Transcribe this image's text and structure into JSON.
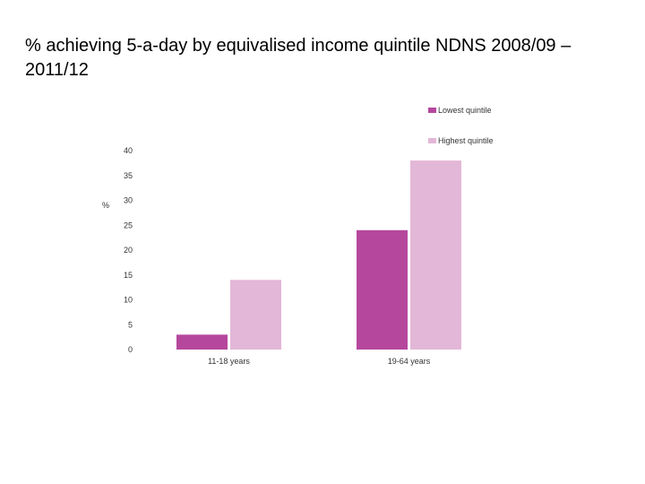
{
  "slide": {
    "title": "% achieving 5-a-day by equivalised income quintile NDNS 2008/09 – 2011/12"
  },
  "chart_data": {
    "type": "bar",
    "title": "",
    "ylabel": "%",
    "xlabel": "",
    "categories": [
      "11-18 years",
      "19-64 years"
    ],
    "series": [
      {
        "name": "Lowest quintile",
        "color": "#b5489d",
        "values": [
          3,
          24
        ]
      },
      {
        "name": "Highest quintile",
        "color": "#e3b7d7",
        "values": [
          14,
          38
        ]
      }
    ],
    "yticks": [
      "0",
      "5",
      "10",
      "15",
      "20",
      "25",
      "30",
      "35",
      "40"
    ],
    "ylim": [
      0,
      40
    ],
    "grid": false,
    "legend_position": "top-right"
  }
}
